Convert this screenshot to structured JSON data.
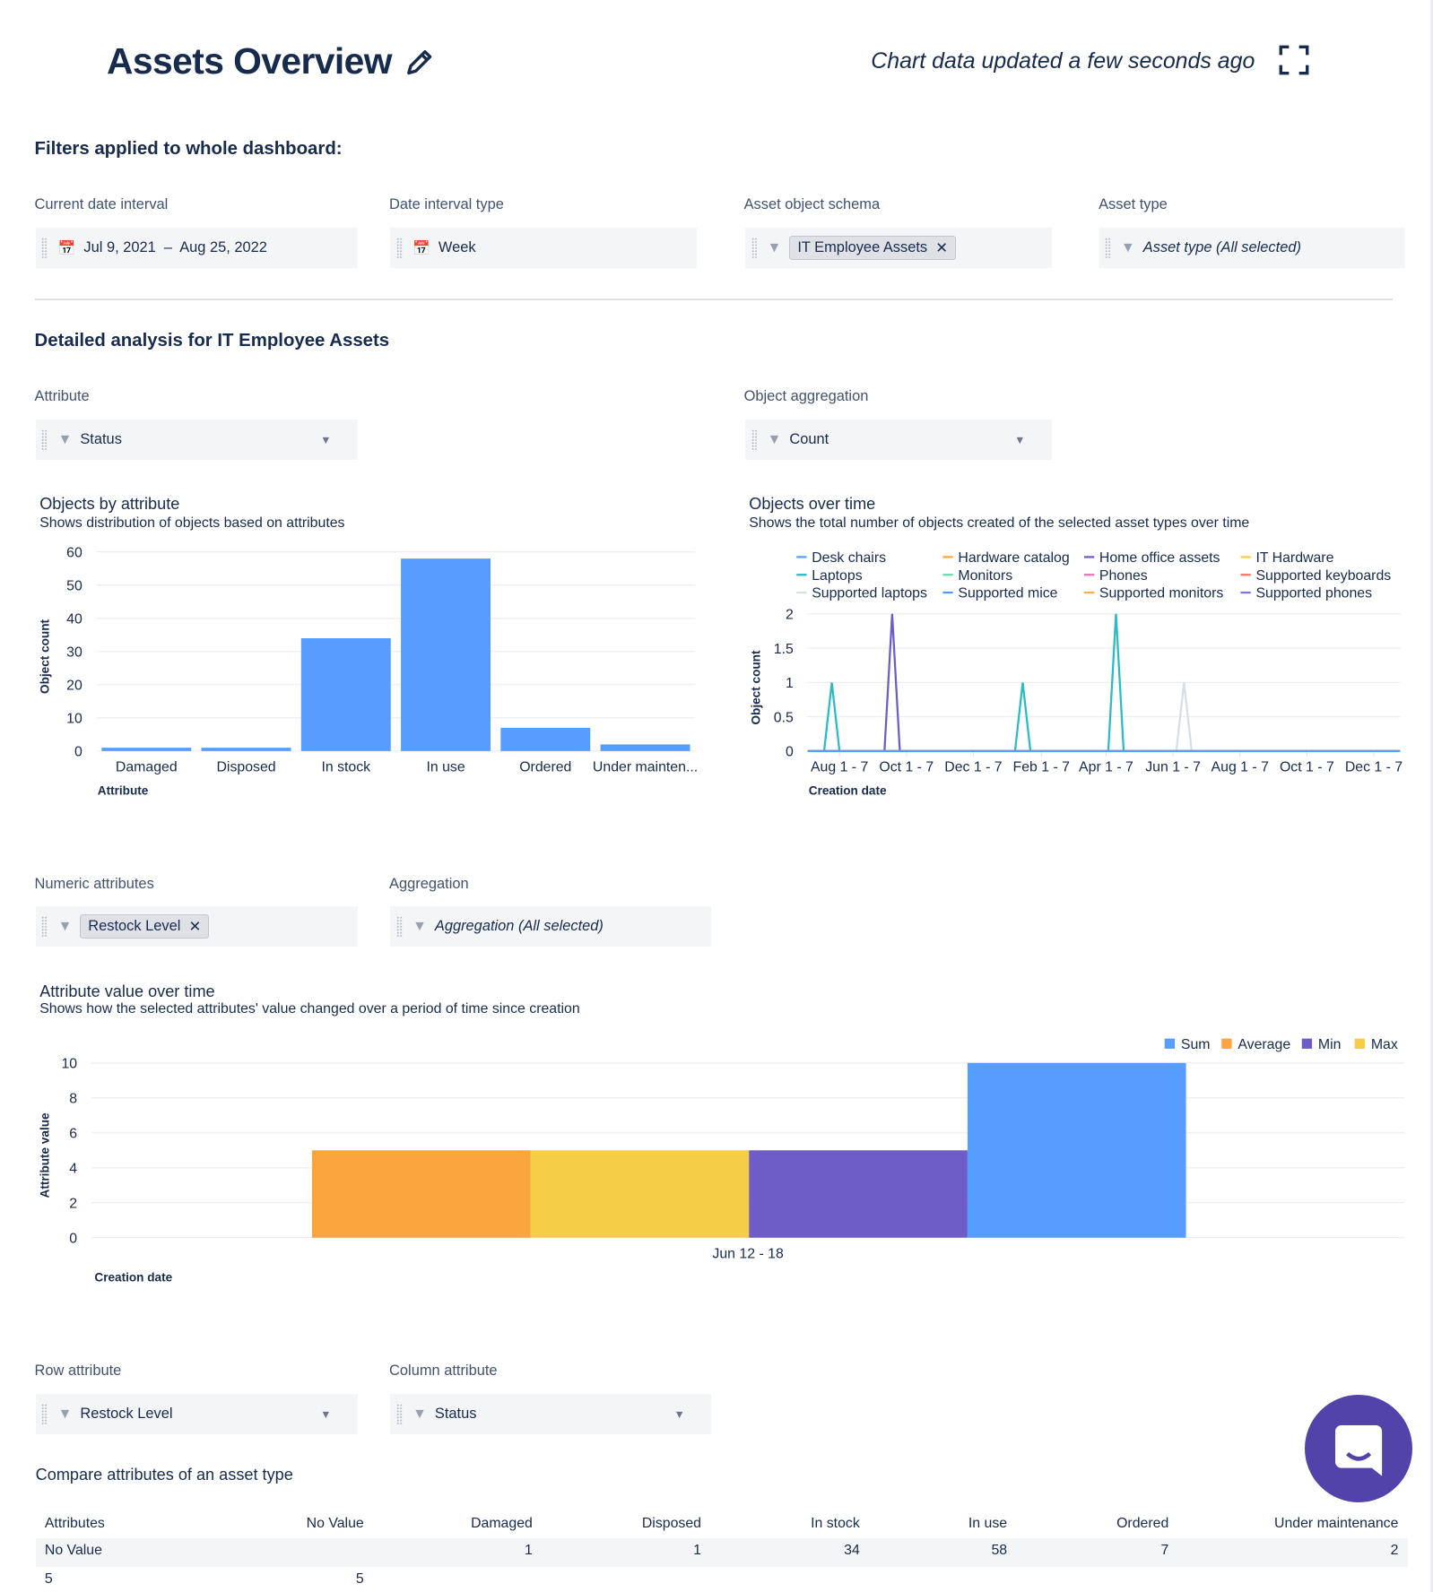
{
  "header": {
    "title": "Assets Overview",
    "updated": "Chart data updated a few seconds ago",
    "edit_icon": "pencil-icon",
    "expand_icon": "fullscreen-icon"
  },
  "filters": {
    "heading": "Filters applied to whole dashboard:",
    "date_interval": {
      "label": "Current date interval",
      "value": "Jul 9, 2021  –  Aug 25, 2022"
    },
    "interval_type": {
      "label": "Date interval type",
      "value": "Week"
    },
    "schema": {
      "label": "Asset object schema",
      "chip": "IT Employee Assets"
    },
    "asset_type": {
      "label": "Asset type",
      "placeholder": "Asset type (All selected)"
    }
  },
  "analysis": {
    "heading": "Detailed analysis for IT Employee Assets",
    "attribute": {
      "label": "Attribute",
      "value": "Status"
    },
    "aggregation": {
      "label": "Object aggregation",
      "value": "Count"
    },
    "numeric": {
      "label": "Numeric attributes",
      "chip": "Restock Level"
    },
    "agg2": {
      "label": "Aggregation",
      "placeholder": "Aggregation (All selected)"
    },
    "row_attr": {
      "label": "Row attribute",
      "value": "Restock Level"
    },
    "col_attr": {
      "label": "Column attribute",
      "value": "Status"
    }
  },
  "chart_data": [
    {
      "type": "bar",
      "title": "Objects by attribute",
      "subtitle": "Shows distribution of objects based on attributes",
      "xlabel": "Attribute",
      "ylabel": "Object count",
      "ylim": [
        0,
        60
      ],
      "yticks": [
        0,
        10,
        20,
        30,
        40,
        50,
        60
      ],
      "grid": true,
      "color": "#579dff",
      "categories": [
        "Damaged",
        "Disposed",
        "In stock",
        "In use",
        "Ordered",
        "Under mainten..."
      ],
      "values": [
        1,
        1,
        34,
        58,
        7,
        2
      ]
    },
    {
      "type": "line",
      "title": "Objects over time",
      "subtitle": "Shows the total number of objects created of the selected asset types over time",
      "xlabel": "Creation date",
      "ylabel": "Object count",
      "ylim": [
        0,
        2
      ],
      "yticks": [
        "0",
        "0.5",
        "1",
        "1.5",
        "2"
      ],
      "grid": true,
      "legend": "top",
      "xrange": [
        "2021-07-03",
        "2022-12-25"
      ],
      "xticks": [
        {
          "label": "Aug 1 - 7",
          "date": "2021-08-01"
        },
        {
          "label": "Oct 1 - 7",
          "date": "2021-10-01"
        },
        {
          "label": "Dec 1 - 7",
          "date": "2021-12-01"
        },
        {
          "label": "Feb 1 - 7",
          "date": "2022-02-01"
        },
        {
          "label": "Apr 1 - 7",
          "date": "2022-04-01"
        },
        {
          "label": "Jun 1 - 7",
          "date": "2022-06-01"
        },
        {
          "label": "Aug 1 - 7",
          "date": "2022-08-01"
        },
        {
          "label": "Oct 1 - 7",
          "date": "2022-10-01"
        },
        {
          "label": "Dec 1 - 7",
          "date": "2022-12-01"
        }
      ],
      "series": [
        {
          "name": "Desk chairs",
          "color": "#579dff",
          "points": []
        },
        {
          "name": "Hardware catalog",
          "color": "#faa53d",
          "points": []
        },
        {
          "name": "Home office assets",
          "color": "#6e5dc6",
          "points": [
            [
              "2021-09-18",
              2
            ]
          ]
        },
        {
          "name": "IT Hardware",
          "color": "#f5cd47",
          "points": []
        },
        {
          "name": "Laptops",
          "color": "#2abbc4",
          "points": [
            [
              "2021-07-25",
              1
            ],
            [
              "2022-01-15",
              1
            ],
            [
              "2022-04-10",
              2
            ]
          ]
        },
        {
          "name": "Monitors",
          "color": "#6cd9b5",
          "points": []
        },
        {
          "name": "Phones",
          "color": "#e774bb",
          "points": []
        },
        {
          "name": "Supported keyboards",
          "color": "#f87462",
          "points": []
        },
        {
          "name": "Supported laptops",
          "color": "#d8dee6",
          "points": [
            [
              "2022-06-11",
              1
            ]
          ]
        },
        {
          "name": "Supported mice",
          "color": "#4c9aff",
          "points": []
        },
        {
          "name": "Supported monitors",
          "color": "#ffab4a",
          "points": []
        },
        {
          "name": "Supported phones",
          "color": "#8270db",
          "points": []
        }
      ]
    },
    {
      "type": "bar",
      "title": "Attribute value over time",
      "subtitle": "Shows how the selected attributes' value changed over a period of time since creation",
      "xlabel": "Creation date",
      "ylabel": "Attribute value",
      "ylim": [
        0,
        10
      ],
      "yticks": [
        0,
        2,
        4,
        6,
        8,
        10
      ],
      "grid": true,
      "legend": "top-right",
      "categories": [
        "Jun 12 - 18"
      ],
      "legend_order": [
        "Sum",
        "Average",
        "Min",
        "Max"
      ],
      "series": [
        {
          "name": "Average",
          "color": "#faa53d",
          "values": [
            5
          ]
        },
        {
          "name": "Max",
          "color": "#f5cd47",
          "values": [
            5
          ]
        },
        {
          "name": "Min",
          "color": "#6e5dc6",
          "values": [
            5
          ]
        },
        {
          "name": "Sum",
          "color": "#579dff",
          "values": [
            10
          ]
        }
      ]
    }
  ],
  "table": {
    "title": "Compare attributes of an asset type",
    "columns": [
      "Attributes",
      "No Value",
      "Damaged",
      "Disposed",
      "In stock",
      "In use",
      "Ordered",
      "Under maintenance"
    ],
    "rows": [
      [
        "No Value",
        "",
        "1",
        "1",
        "34",
        "58",
        "7",
        "2"
      ],
      [
        "5",
        "5",
        "",
        "",
        "",
        "",
        "",
        ""
      ]
    ]
  },
  "chat": {
    "icon": "chat-bubble-icon",
    "color": "#5243aa"
  }
}
